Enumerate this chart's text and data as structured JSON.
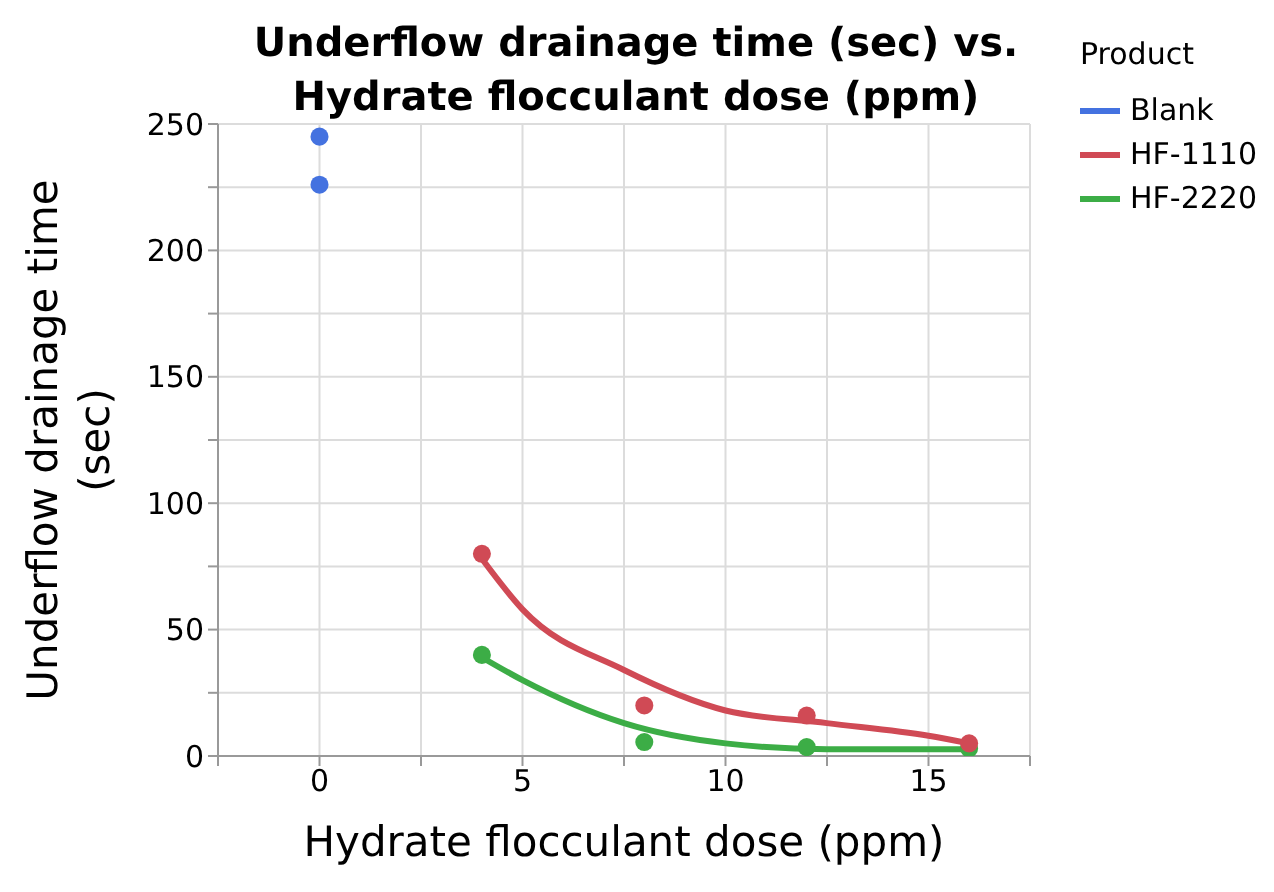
{
  "chart_data": {
    "type": "scatter",
    "title": "Underflow drainage time (sec) vs. Hydrate flocculant dose (ppm)",
    "xlabel": "Hydrate flocculant dose (ppm)",
    "ylabel": "Underflow drainage time (sec)",
    "legend_title": "Product",
    "legend": "right",
    "grid": true,
    "marker": "circle",
    "xlim": [
      -2.5,
      17.5
    ],
    "xticks": [
      {
        "value": -2.5,
        "label": null
      },
      0,
      {
        "value": 2.5,
        "label": null
      },
      5,
      {
        "value": 7.5,
        "label": null
      },
      10,
      {
        "value": 12.5,
        "label": null
      },
      15,
      {
        "value": 17.5,
        "label": null
      }
    ],
    "ylim": [
      0,
      250
    ],
    "yticks": [
      0,
      {
        "value": 25,
        "label": null
      },
      50,
      {
        "value": 75,
        "label": null
      },
      100,
      {
        "value": 125,
        "label": null
      },
      150,
      {
        "value": 175,
        "label": null
      },
      200,
      {
        "value": 225,
        "label": null
      },
      250
    ],
    "series": [
      {
        "name": "Blank",
        "color": "#4472e0",
        "x": [
          0,
          0
        ],
        "values": [
          245,
          226
        ]
      },
      {
        "name": "HF-1110",
        "color": "#d04a55",
        "x": [
          4,
          8,
          12,
          16
        ],
        "values": [
          80,
          20,
          16,
          5
        ]
      },
      {
        "name": "HF-2220",
        "color": "#3cad46",
        "x": [
          4,
          8,
          12,
          16
        ],
        "values": [
          40,
          5.5,
          3.5,
          3
        ]
      },
      {
        "type": "line",
        "color": "#d04a55",
        "marker": "none",
        "x": [
          4,
          5,
          7.5,
          10,
          12.5,
          15,
          16
        ],
        "values": [
          78,
          58,
          34,
          18,
          13,
          8,
          5
        ]
      },
      {
        "type": "line",
        "color": "#3cad46",
        "marker": "none",
        "x": [
          4,
          5,
          7.5,
          10,
          12.5,
          16
        ],
        "values": [
          39,
          30,
          13,
          5,
          2.7,
          2.7
        ]
      }
    ]
  }
}
